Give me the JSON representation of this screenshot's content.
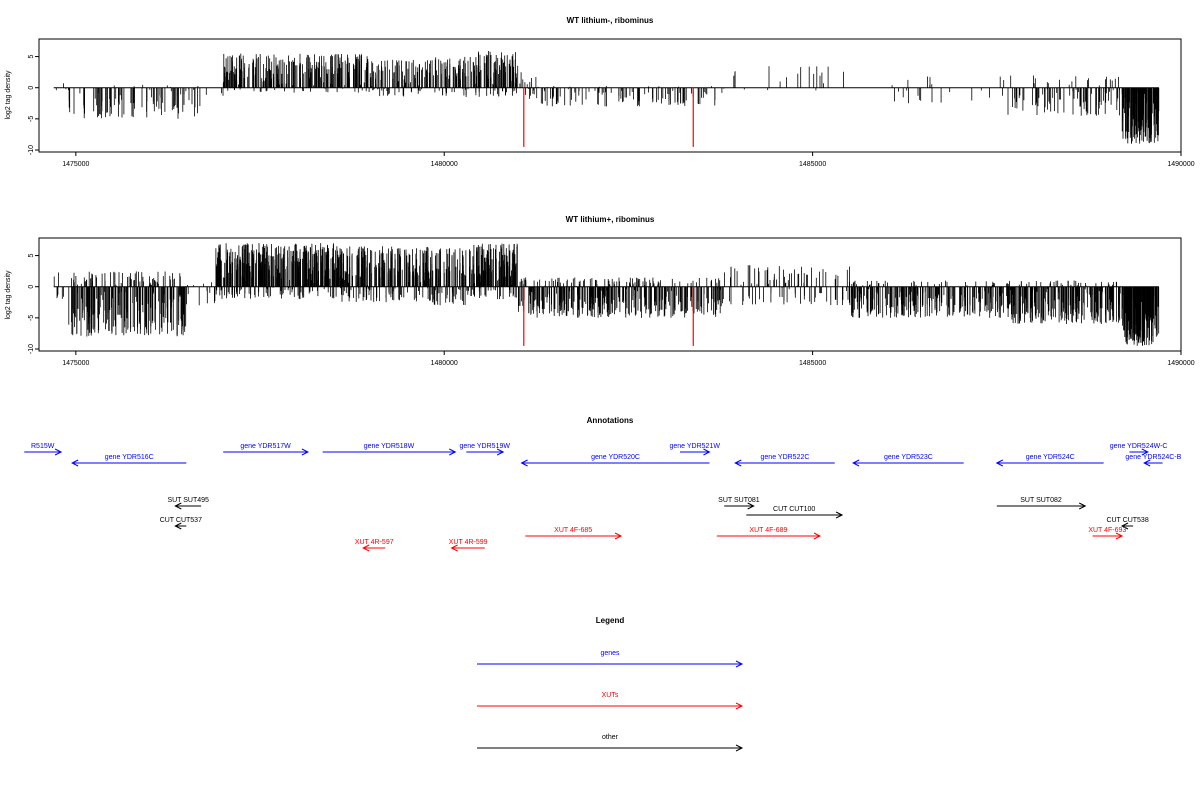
{
  "chart_data": [
    {
      "type": "bar",
      "title": "WT lithium-, ribominus",
      "ylabel": "log2 tag density",
      "xlim": [
        1474500,
        1490000
      ],
      "ylim": [
        -10,
        7.5
      ],
      "xticks": [
        "1475000",
        "1480000",
        "1485000",
        "1490000"
      ],
      "yticks": [
        "-10",
        "-5",
        "0",
        "5"
      ],
      "marker_positions": [
        1481080,
        1483380
      ],
      "marker_color": "#ff0000",
      "segments": [
        {
          "x": [
            1474700,
            1474900
          ],
          "min": -0.5,
          "max": 1.0,
          "density": 0.25
        },
        {
          "x": [
            1474900,
            1476700
          ],
          "min": -5,
          "max": 0.5,
          "density": 0.7
        },
        {
          "x": [
            1476700,
            1477000
          ],
          "min": -1.5,
          "max": 0.2,
          "density": 0.15
        },
        {
          "x": [
            1477000,
            1479000
          ],
          "min": -0.8,
          "max": 5.5,
          "density": 1.8
        },
        {
          "x": [
            1479000,
            1479800
          ],
          "min": -1.5,
          "max": 4.5,
          "density": 1.6
        },
        {
          "x": [
            1479800,
            1480400
          ],
          "min": -1.5,
          "max": 5.0,
          "density": 1.6
        },
        {
          "x": [
            1480400,
            1481000
          ],
          "min": -1.5,
          "max": 6.0,
          "density": 2.2
        },
        {
          "x": [
            1481000,
            1481250
          ],
          "min": -2.5,
          "max": 2.5,
          "density": 0.8
        },
        {
          "x": [
            1481250,
            1483800
          ],
          "min": -3.0,
          "max": 0.3,
          "density": 0.6
        },
        {
          "x": [
            1483800,
            1485500
          ],
          "min": -0.5,
          "max": 3.5,
          "density": 0.15
        },
        {
          "x": [
            1485500,
            1486100
          ],
          "min": -0.5,
          "max": 0.8,
          "density": 0.05
        },
        {
          "x": [
            1486100,
            1487600
          ],
          "min": -2.5,
          "max": 2.0,
          "density": 0.2
        },
        {
          "x": [
            1487600,
            1489200
          ],
          "min": -4.5,
          "max": 2.0,
          "density": 0.8
        },
        {
          "x": [
            1489200,
            1489700
          ],
          "min": -9.0,
          "max": 0,
          "density": 4.0
        }
      ]
    },
    {
      "type": "bar",
      "title": "WT lithium+, ribominus",
      "ylabel": "log2 tag density",
      "xlim": [
        1474500,
        1490000
      ],
      "ylim": [
        -10,
        7.5
      ],
      "xticks": [
        "1475000",
        "1480000",
        "1485000",
        "1490000"
      ],
      "yticks": [
        "-10",
        "-5",
        "0",
        "5"
      ],
      "marker_positions": [
        1481080,
        1483380
      ],
      "marker_color": "#ff0000",
      "segments": [
        {
          "x": [
            1474700,
            1474900
          ],
          "min": -2.0,
          "max": 2.5,
          "density": 0.5
        },
        {
          "x": [
            1474900,
            1476500
          ],
          "min": -8,
          "max": 2.5,
          "density": 2.2
        },
        {
          "x": [
            1476500,
            1476900
          ],
          "min": -3,
          "max": 1.0,
          "density": 0.4
        },
        {
          "x": [
            1476900,
            1478500
          ],
          "min": -2,
          "max": 7.0,
          "density": 3.0
        },
        {
          "x": [
            1478500,
            1479800
          ],
          "min": -2.5,
          "max": 6.5,
          "density": 2.6
        },
        {
          "x": [
            1479800,
            1480300
          ],
          "min": -3,
          "max": 6.5,
          "density": 2.2
        },
        {
          "x": [
            1480300,
            1481000
          ],
          "min": -2,
          "max": 7.0,
          "density": 3.0
        },
        {
          "x": [
            1481000,
            1483800
          ],
          "min": -5,
          "max": 1.5,
          "density": 2.0
        },
        {
          "x": [
            1483800,
            1485500
          ],
          "min": -3,
          "max": 3.5,
          "density": 0.8
        },
        {
          "x": [
            1485500,
            1487700
          ],
          "min": -5,
          "max": 1.0,
          "density": 1.8
        },
        {
          "x": [
            1487700,
            1489200
          ],
          "min": -6,
          "max": 1.0,
          "density": 2.2
        },
        {
          "x": [
            1489200,
            1489700
          ],
          "min": -9.5,
          "max": 0,
          "density": 4.5
        }
      ]
    }
  ],
  "annotations": {
    "title": "Annotations",
    "xlim": [
      1474500,
      1490000
    ],
    "features": [
      {
        "label": "R515W",
        "x1": 1474300,
        "x2": 1474800,
        "strand": "+",
        "row": 0,
        "color": "#0000ff"
      },
      {
        "label": "gene YDR516C",
        "x1": 1474950,
        "x2": 1476500,
        "strand": "-",
        "row": 1,
        "color": "#0000ff"
      },
      {
        "label": "gene YDR517W",
        "x1": 1477000,
        "x2": 1478150,
        "strand": "+",
        "row": 0,
        "color": "#0000ff"
      },
      {
        "label": "gene YDR518W",
        "x1": 1478350,
        "x2": 1480150,
        "strand": "+",
        "row": 0,
        "color": "#0000ff"
      },
      {
        "label": "gene YDR519W",
        "x1": 1480300,
        "x2": 1480800,
        "strand": "+",
        "row": 0,
        "color": "#0000ff"
      },
      {
        "label": "gene YDR520C",
        "x1": 1481050,
        "x2": 1483600,
        "strand": "-",
        "row": 1,
        "color": "#0000ff"
      },
      {
        "label": "gene YDR521W",
        "x1": 1483200,
        "x2": 1483600,
        "strand": "+",
        "row": 0,
        "color": "#0000ff"
      },
      {
        "label": "gene YDR522C",
        "x1": 1483950,
        "x2": 1485300,
        "strand": "-",
        "row": 1,
        "color": "#0000ff"
      },
      {
        "label": "gene YDR523C",
        "x1": 1485550,
        "x2": 1487050,
        "strand": "-",
        "row": 1,
        "color": "#0000ff"
      },
      {
        "label": "gene YDR524C",
        "x1": 1487500,
        "x2": 1488950,
        "strand": "-",
        "row": 1,
        "color": "#0000ff"
      },
      {
        "label": "gene YDR524W-C",
        "x1": 1489300,
        "x2": 1489550,
        "strand": "+",
        "row": 0,
        "color": "#0000ff"
      },
      {
        "label": "gene YDR524C-B",
        "x1": 1489500,
        "x2": 1489750,
        "strand": "-",
        "row": 1,
        "color": "#0000ff"
      },
      {
        "label": "SUT SUT495",
        "x1": 1476350,
        "x2": 1476700,
        "strand": "-",
        "row": 3,
        "color": "#000000"
      },
      {
        "label": "SUT SUT081",
        "x1": 1483800,
        "x2": 1484200,
        "strand": "+",
        "row": 3,
        "color": "#000000"
      },
      {
        "label": "SUT SUT082",
        "x1": 1487500,
        "x2": 1488700,
        "strand": "+",
        "row": 3,
        "color": "#000000"
      },
      {
        "label": "CUT CUT537",
        "x1": 1476350,
        "x2": 1476500,
        "strand": "-",
        "row": 5,
        "color": "#000000"
      },
      {
        "label": "CUT CUT100",
        "x1": 1484100,
        "x2": 1485400,
        "strand": "+",
        "row": 4,
        "color": "#000000"
      },
      {
        "label": "CUT CUT538",
        "x1": 1489200,
        "x2": 1489350,
        "strand": "-",
        "row": 5,
        "color": "#000000"
      },
      {
        "label": "XUT 4R-597",
        "x1": 1478900,
        "x2": 1479200,
        "strand": "-",
        "row": 7,
        "color": "#ff0000"
      },
      {
        "label": "XUT 4R-599",
        "x1": 1480100,
        "x2": 1480550,
        "strand": "-",
        "row": 7,
        "color": "#ff0000"
      },
      {
        "label": "XUT 4F-685",
        "x1": 1481100,
        "x2": 1482400,
        "strand": "+",
        "row": 6,
        "color": "#ff0000"
      },
      {
        "label": "XUT 4F-689",
        "x1": 1483700,
        "x2": 1485100,
        "strand": "+",
        "row": 6,
        "color": "#ff0000"
      },
      {
        "label": "XUT 4F-693",
        "x1": 1488800,
        "x2": 1489200,
        "strand": "+",
        "row": 6,
        "color": "#ff0000"
      }
    ]
  },
  "legend": {
    "title": "Legend",
    "items": [
      {
        "label": "genes",
        "color": "#0000ff"
      },
      {
        "label": "XUTs",
        "color": "#ff0000"
      },
      {
        "label": "other",
        "color": "#000000"
      }
    ]
  }
}
